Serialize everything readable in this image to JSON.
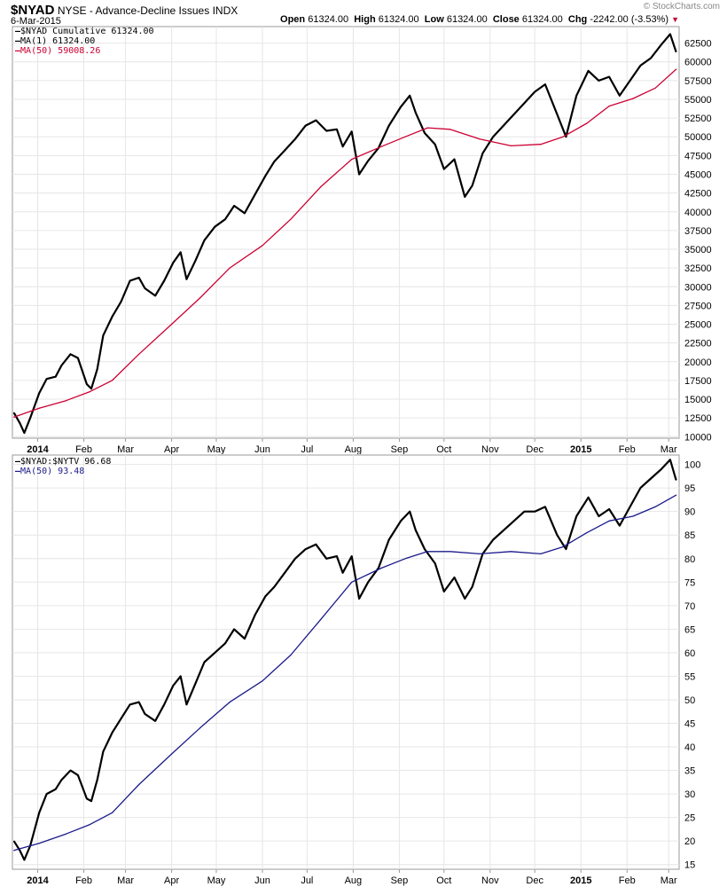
{
  "header": {
    "symbol": "$NYAD",
    "exchange": "NYSE - Advance-Decline Issues",
    "index_tag": "INDX",
    "date": "6-Mar-2015",
    "open_label": "Open",
    "open_value": "61324.00",
    "high_label": "High",
    "high_value": "61324.00",
    "low_label": "Low",
    "low_value": "61324.00",
    "close_label": "Close",
    "close_value": "61324.00",
    "chg_label": "Chg",
    "chg_value": "-2242.00 (-3.53%)",
    "credit": "© StockCharts.com",
    "down_color": "#cc0033"
  },
  "chart_data": [
    {
      "type": "line",
      "legend": [
        "$NYAD Cumulative 61324.00",
        "MA(1) 61324.00",
        "MA(50) 59008.26"
      ],
      "x_ticks": [
        "2014",
        "Feb",
        "Mar",
        "Apr",
        "May",
        "Jun",
        "Jul",
        "Aug",
        "Sep",
        "Oct",
        "Nov",
        "Dec",
        "2015",
        "Feb",
        "Mar"
      ],
      "y_ticks": [
        10000,
        12500,
        15000,
        17500,
        20000,
        22500,
        25000,
        27500,
        30000,
        32500,
        35000,
        37500,
        40000,
        42500,
        45000,
        47500,
        50000,
        52500,
        55000,
        57500,
        60000,
        62500
      ],
      "ylim": [
        9800,
        64700
      ],
      "grid": true,
      "legend_position": "top-left",
      "series": [
        {
          "name": "$NYAD Cumulative",
          "color": "#000000",
          "x": [
            "2013-12-16",
            "2013-12-20",
            "2013-12-23",
            "2013-12-27",
            "2014-01-02",
            "2014-01-07",
            "2014-01-13",
            "2014-01-17",
            "2014-01-23",
            "2014-01-28",
            "2014-02-03",
            "2014-02-06",
            "2014-02-10",
            "2014-02-14",
            "2014-02-20",
            "2014-02-26",
            "2014-03-04",
            "2014-03-10",
            "2014-03-14",
            "2014-03-21",
            "2014-03-27",
            "2014-04-02",
            "2014-04-07",
            "2014-04-11",
            "2014-04-17",
            "2014-04-23",
            "2014-04-30",
            "2014-05-07",
            "2014-05-13",
            "2014-05-20",
            "2014-05-27",
            "2014-06-03",
            "2014-06-09",
            "2014-06-16",
            "2014-06-23",
            "2014-06-30",
            "2014-07-07",
            "2014-07-14",
            "2014-07-21",
            "2014-07-25",
            "2014-07-31",
            "2014-08-05",
            "2014-08-11",
            "2014-08-18",
            "2014-08-25",
            "2014-09-02",
            "2014-09-08",
            "2014-09-12",
            "2014-09-18",
            "2014-09-25",
            "2014-10-01",
            "2014-10-08",
            "2014-10-15",
            "2014-10-20",
            "2014-10-27",
            "2014-11-03",
            "2014-11-10",
            "2014-11-17",
            "2014-11-24",
            "2014-12-01",
            "2014-12-08",
            "2014-12-16",
            "2014-12-22",
            "2014-12-29",
            "2015-01-06",
            "2015-01-13",
            "2015-01-20",
            "2015-01-27",
            "2015-02-03",
            "2015-02-10",
            "2015-02-17",
            "2015-02-24",
            "2015-03-02",
            "2015-03-06"
          ],
          "values": [
            13200,
            11800,
            10500,
            12500,
            15800,
            17700,
            18000,
            19500,
            21000,
            20500,
            17000,
            16400,
            19000,
            23500,
            26000,
            28000,
            30800,
            31200,
            29800,
            28800,
            30800,
            33200,
            34600,
            31000,
            33500,
            36200,
            38000,
            39000,
            40800,
            39800,
            42300,
            44800,
            46700,
            48200,
            49700,
            51500,
            52200,
            50800,
            51000,
            48700,
            50700,
            45000,
            46800,
            48500,
            51500,
            54000,
            55500,
            53200,
            50500,
            49000,
            45700,
            47000,
            42000,
            43500,
            47800,
            50000,
            51500,
            53000,
            54500,
            56000,
            57000,
            53000,
            50000,
            55500,
            58800,
            57500,
            58000,
            55500,
            57500,
            59500,
            60500,
            62300,
            63700,
            61324
          ]
        },
        {
          "name": "MA(50)",
          "color": "#cc0033",
          "x": [
            "2013-12-16",
            "2014-01-02",
            "2014-01-20",
            "2014-02-05",
            "2014-02-20",
            "2014-03-10",
            "2014-04-01",
            "2014-04-20",
            "2014-05-10",
            "2014-06-01",
            "2014-06-20",
            "2014-07-10",
            "2014-07-31",
            "2014-08-20",
            "2014-09-05",
            "2014-09-20",
            "2014-10-05",
            "2014-10-25",
            "2014-11-15",
            "2014-12-05",
            "2014-12-20",
            "2015-01-05",
            "2015-01-20",
            "2015-02-05",
            "2015-02-20",
            "2015-03-06"
          ],
          "values": [
            12600,
            13800,
            14800,
            16000,
            17500,
            21000,
            25000,
            28500,
            32500,
            35500,
            39000,
            43300,
            47000,
            48700,
            50000,
            51200,
            51000,
            49700,
            48800,
            49000,
            50000,
            51800,
            54100,
            55100,
            56500,
            59008
          ]
        }
      ]
    },
    {
      "type": "line",
      "legend": [
        "$NYAD:$NYTV 96.68",
        "MA(50) 93.48"
      ],
      "x_ticks": [
        "2014",
        "Feb",
        "Mar",
        "Apr",
        "May",
        "Jun",
        "Jul",
        "Aug",
        "Sep",
        "Oct",
        "Nov",
        "Dec",
        "2015",
        "Feb",
        "Mar"
      ],
      "y_ticks": [
        15,
        20,
        25,
        30,
        35,
        40,
        45,
        50,
        55,
        60,
        65,
        70,
        75,
        80,
        85,
        90,
        95,
        100
      ],
      "ylim": [
        14,
        102
      ],
      "grid": true,
      "legend_position": "top-left",
      "series": [
        {
          "name": "$NYAD:$NYTV",
          "color": "#000000",
          "x": [
            "2013-12-16",
            "2013-12-20",
            "2013-12-23",
            "2013-12-27",
            "2014-01-02",
            "2014-01-07",
            "2014-01-13",
            "2014-01-17",
            "2014-01-23",
            "2014-01-28",
            "2014-02-03",
            "2014-02-06",
            "2014-02-10",
            "2014-02-14",
            "2014-02-20",
            "2014-02-26",
            "2014-03-04",
            "2014-03-10",
            "2014-03-14",
            "2014-03-21",
            "2014-03-27",
            "2014-04-02",
            "2014-04-07",
            "2014-04-11",
            "2014-04-17",
            "2014-04-23",
            "2014-04-30",
            "2014-05-07",
            "2014-05-13",
            "2014-05-20",
            "2014-05-27",
            "2014-06-03",
            "2014-06-09",
            "2014-06-16",
            "2014-06-23",
            "2014-06-30",
            "2014-07-07",
            "2014-07-14",
            "2014-07-21",
            "2014-07-25",
            "2014-07-31",
            "2014-08-05",
            "2014-08-11",
            "2014-08-18",
            "2014-08-25",
            "2014-09-02",
            "2014-09-08",
            "2014-09-12",
            "2014-09-18",
            "2014-09-25",
            "2014-10-01",
            "2014-10-08",
            "2014-10-15",
            "2014-10-20",
            "2014-10-27",
            "2014-11-03",
            "2014-11-10",
            "2014-11-17",
            "2014-11-24",
            "2014-12-01",
            "2014-12-08",
            "2014-12-16",
            "2014-12-22",
            "2014-12-29",
            "2015-01-06",
            "2015-01-13",
            "2015-01-20",
            "2015-01-27",
            "2015-02-03",
            "2015-02-10",
            "2015-02-17",
            "2015-02-24",
            "2015-03-02",
            "2015-03-06"
          ],
          "values": [
            20,
            18,
            16,
            19,
            26,
            30,
            31,
            33,
            35,
            34,
            29,
            28.5,
            33,
            39,
            43,
            46,
            49,
            49.5,
            47,
            45.5,
            49,
            53,
            55,
            49,
            53.5,
            58,
            60,
            62,
            65,
            63,
            68,
            72,
            74,
            77,
            80,
            82,
            83,
            80,
            80.5,
            77,
            80.5,
            71.5,
            75,
            78,
            84,
            88,
            90,
            86,
            82,
            79,
            73,
            76,
            71.5,
            74,
            81,
            84,
            86,
            88,
            90,
            90,
            91,
            85,
            82,
            89,
            93,
            89,
            90.5,
            87,
            91,
            95,
            97,
            99,
            101,
            96.68
          ]
        },
        {
          "name": "MA(50)",
          "color": "#1a1a8a",
          "x": [
            "2013-12-16",
            "2014-01-02",
            "2014-01-20",
            "2014-02-05",
            "2014-02-20",
            "2014-03-10",
            "2014-04-01",
            "2014-04-20",
            "2014-05-10",
            "2014-06-01",
            "2014-06-20",
            "2014-07-10",
            "2014-07-31",
            "2014-08-20",
            "2014-09-05",
            "2014-09-20",
            "2014-10-05",
            "2014-10-25",
            "2014-11-15",
            "2014-12-05",
            "2014-12-20",
            "2015-01-05",
            "2015-01-20",
            "2015-02-05",
            "2015-02-20",
            "2015-03-06"
          ],
          "values": [
            18,
            19.5,
            21.5,
            23.5,
            26,
            32,
            38.5,
            44,
            49.5,
            54,
            59.5,
            67,
            75,
            78,
            80,
            81.5,
            81.5,
            81,
            81.5,
            81,
            82.5,
            85.5,
            88,
            89,
            91,
            93.48
          ]
        }
      ]
    }
  ]
}
